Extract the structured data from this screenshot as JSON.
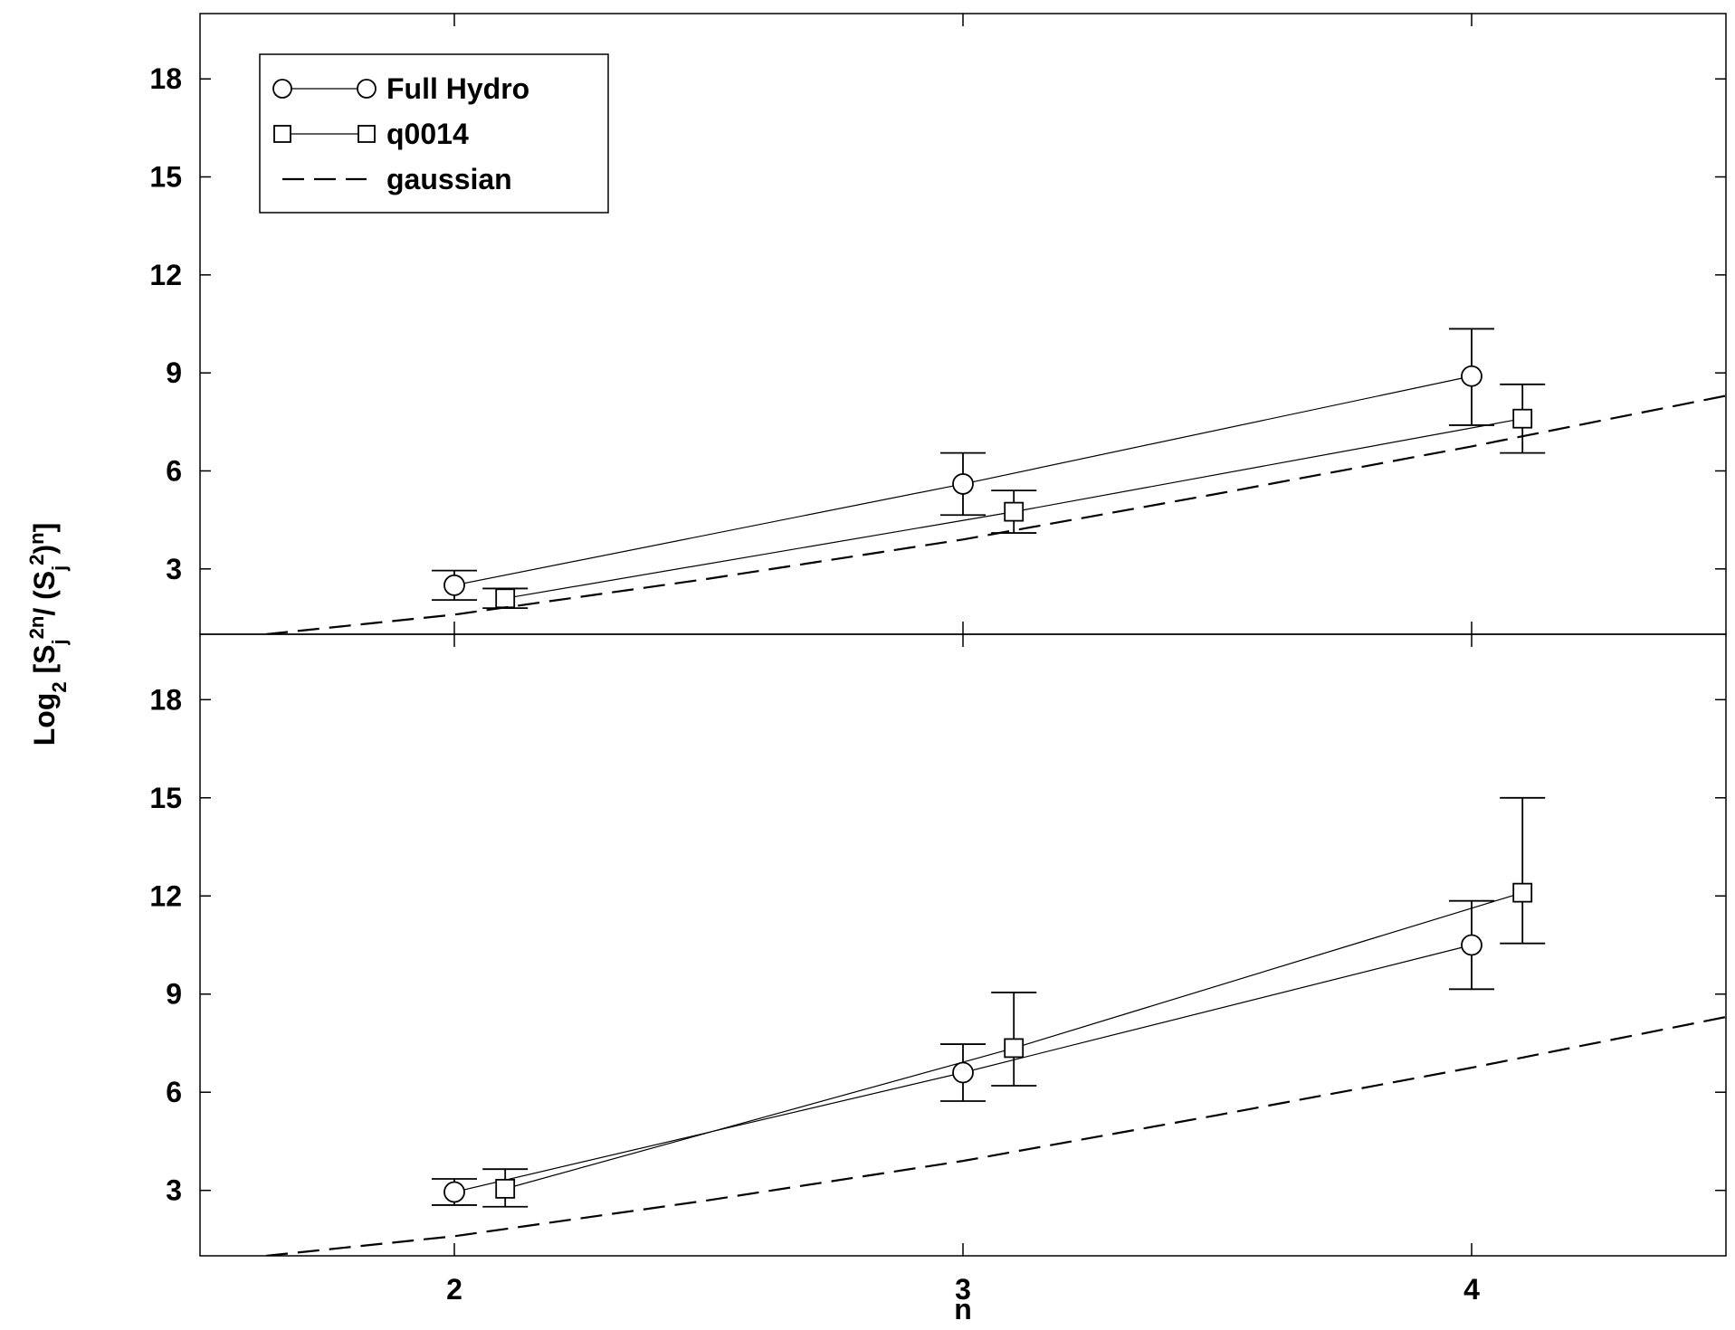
{
  "chart_data": [
    {
      "type": "line",
      "ylabel_parts": [
        "Log",
        "2",
        " [S",
        "j",
        "2n",
        "/ (S",
        "j",
        "2",
        ")",
        "n",
        "]"
      ],
      "xlim": [
        1.5,
        4.5
      ],
      "xticks": [
        2,
        3,
        4
      ],
      "ylim": [
        1,
        20
      ],
      "yticks": [
        3,
        6,
        9,
        12,
        15,
        18
      ],
      "show_xtick_labels": false,
      "legend": "upper left",
      "series": [
        {
          "name": "Full Hydro",
          "marker": "circle",
          "color": "#000000",
          "x": [
            2,
            3,
            4
          ],
          "values": [
            2.5,
            5.6,
            8.9
          ],
          "error_high": [
            0.45,
            0.95,
            1.45
          ],
          "error_low": [
            0.45,
            0.95,
            1.5
          ]
        },
        {
          "name": "q0014",
          "marker": "square",
          "color": "#000000",
          "x": [
            2.1,
            3.1,
            4.1
          ],
          "values": [
            2.1,
            4.75,
            7.6
          ],
          "error_high": [
            0.3,
            0.65,
            1.05
          ],
          "error_low": [
            0.3,
            0.65,
            1.05
          ]
        },
        {
          "name": "gaussian",
          "marker": "none",
          "dashed": true,
          "color": "#000000",
          "x": [
            1.63,
            2,
            2.5,
            3,
            3.5,
            4,
            4.5
          ],
          "values": [
            1.0,
            1.6,
            2.7,
            3.9,
            5.3,
            6.75,
            8.3
          ]
        }
      ]
    },
    {
      "type": "line",
      "xlabel": "n",
      "xlim": [
        1.5,
        4.5
      ],
      "xticks": [
        2,
        3,
        4
      ],
      "ylim": [
        1,
        20
      ],
      "yticks": [
        3,
        6,
        9,
        12,
        15,
        18
      ],
      "show_xtick_labels": true,
      "series": [
        {
          "marker": "circle",
          "color": "#000000",
          "x": [
            2,
            3,
            4
          ],
          "values": [
            2.95,
            6.6,
            10.5
          ],
          "error_high": [
            0.4,
            0.87,
            1.35
          ],
          "error_low": [
            0.4,
            0.87,
            1.35
          ]
        },
        {
          "marker": "square",
          "color": "#000000",
          "x": [
            2.1,
            3.1,
            4.1
          ],
          "values": [
            3.05,
            7.35,
            12.1
          ],
          "error_high": [
            0.6,
            1.7,
            2.9
          ],
          "error_low": [
            0.55,
            1.15,
            1.55
          ]
        },
        {
          "marker": "none",
          "dashed": true,
          "color": "#000000",
          "x": [
            1.63,
            2,
            2.5,
            3,
            3.5,
            4,
            4.5
          ],
          "values": [
            1.0,
            1.6,
            2.7,
            3.9,
            5.3,
            6.75,
            8.3
          ]
        }
      ]
    }
  ]
}
